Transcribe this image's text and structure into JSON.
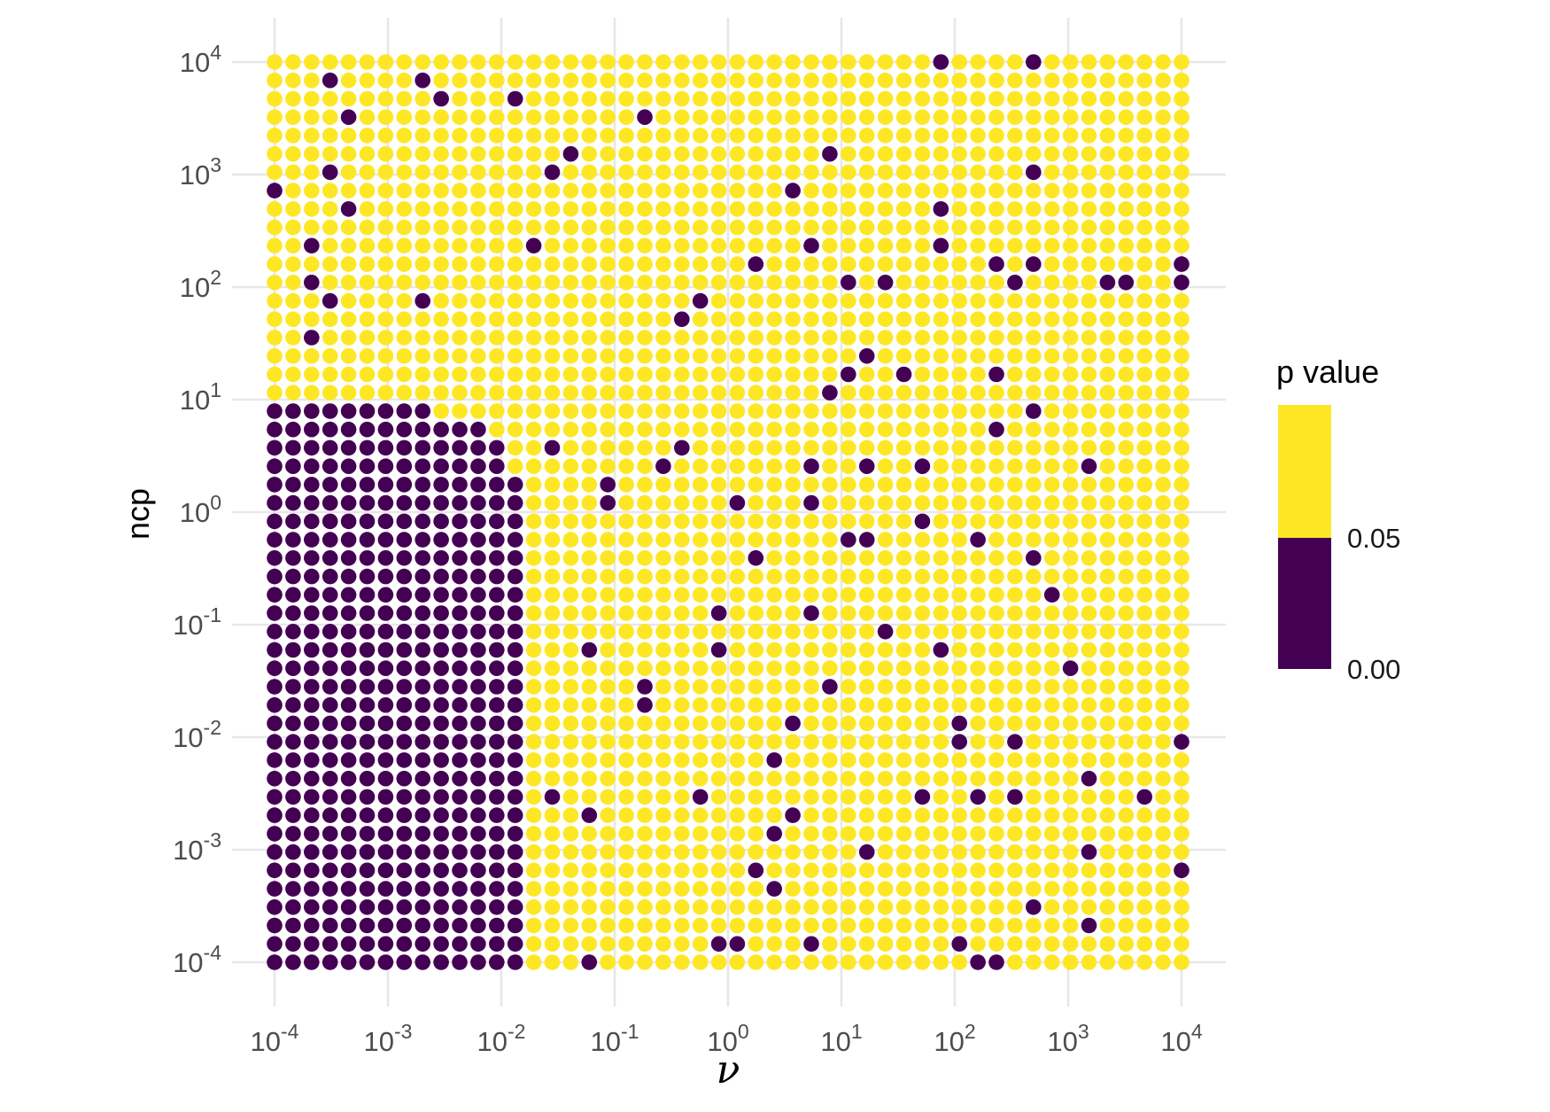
{
  "figure": {
    "background": "#FFFFFF",
    "panel": {
      "gridline_color": "#E7E7E7",
      "x_gridline_exponents": [
        -4,
        -3,
        -2,
        -1,
        0,
        1,
        2,
        3,
        4
      ],
      "y_gridline_exponents": [
        -4,
        -3,
        -2,
        -1,
        0,
        1,
        2,
        3,
        4
      ]
    },
    "x_axis": {
      "title": "ν",
      "tick_labels": [
        "10^-4",
        "10^-3",
        "10^-2",
        "10^-1",
        "10^0",
        "10^1",
        "10^2",
        "10^3",
        "10^4"
      ],
      "tick_base": "10",
      "tick_exponents": [
        "-4",
        "-3",
        "-2",
        "-1",
        "0",
        "1",
        "2",
        "3",
        "4"
      ],
      "tick_color": "#4D4D4D",
      "title_color": "#000000"
    },
    "y_axis": {
      "title": "ncp",
      "tick_labels": [
        "10^-4",
        "10^-3",
        "10^-2",
        "10^-1",
        "10^0",
        "10^1",
        "10^2",
        "10^3",
        "10^4"
      ],
      "tick_base": "10",
      "tick_exponents": [
        "-4",
        "-3",
        "-2",
        "-1",
        "0",
        "1",
        "2",
        "3",
        "4"
      ],
      "tick_color": "#4D4D4D",
      "title_color": "#000000"
    }
  },
  "legend": {
    "title": "p value",
    "labels": [
      "0.05",
      "0.00"
    ],
    "label_values": [
      0.05,
      0.0
    ],
    "segment_colors": [
      "#FDE725",
      "#440154"
    ],
    "text_color": "#1A1A1A"
  },
  "chart_data": {
    "type": "scatter",
    "subtype": "dot-grid-significance-map",
    "title": "",
    "xlabel": "ν",
    "ylabel": "ncp",
    "x_scale": "log10",
    "y_scale": "log10",
    "x_range": [
      0.0001,
      10000
    ],
    "y_range": [
      0.0001,
      10000
    ],
    "grid_points_per_axis": 50,
    "legend_position": "right",
    "grid": "major-only",
    "color_scale": {
      "name": "p value",
      "threshold": 0.05,
      "color_below_threshold": "#440154",
      "color_above_threshold": "#FDE725"
    },
    "significant_block": {
      "description": "contiguous p<0.05 region in lower-left: column index i (0=1e-4 .. 49=1e4) and row index j (0=1e-4 bottom .. 49=1e4 top)",
      "max_row": 30,
      "default_max_col": 13,
      "row_caps": {
        "30": 8,
        "29": 11,
        "28": 12,
        "27": 12
      }
    },
    "dark_outliers": [
      [
        36,
        49
      ],
      [
        41,
        49
      ],
      [
        3,
        48
      ],
      [
        8,
        48
      ],
      [
        9,
        47
      ],
      [
        13,
        47
      ],
      [
        4,
        46
      ],
      [
        20,
        46
      ],
      [
        16,
        44
      ],
      [
        30,
        44
      ],
      [
        3,
        43
      ],
      [
        15,
        43
      ],
      [
        41,
        43
      ],
      [
        0,
        42
      ],
      [
        28,
        42
      ],
      [
        4,
        41
      ],
      [
        36,
        41
      ],
      [
        2,
        39
      ],
      [
        14,
        39
      ],
      [
        29,
        39
      ],
      [
        36,
        39
      ],
      [
        26,
        38
      ],
      [
        39,
        38
      ],
      [
        41,
        38
      ],
      [
        49,
        38
      ],
      [
        2,
        37
      ],
      [
        31,
        37
      ],
      [
        33,
        37
      ],
      [
        40,
        37
      ],
      [
        45,
        37
      ],
      [
        46,
        37
      ],
      [
        49,
        37
      ],
      [
        3,
        36
      ],
      [
        8,
        36
      ],
      [
        23,
        36
      ],
      [
        22,
        35
      ],
      [
        2,
        34
      ],
      [
        32,
        33
      ],
      [
        31,
        32
      ],
      [
        34,
        32
      ],
      [
        39,
        32
      ],
      [
        30,
        31
      ],
      [
        41,
        30
      ],
      [
        39,
        29
      ],
      [
        15,
        28
      ],
      [
        22,
        28
      ],
      [
        21,
        27
      ],
      [
        29,
        27
      ],
      [
        32,
        27
      ],
      [
        35,
        27
      ],
      [
        44,
        27
      ],
      [
        18,
        26
      ],
      [
        18,
        25
      ],
      [
        25,
        25
      ],
      [
        29,
        25
      ],
      [
        35,
        24
      ],
      [
        31,
        23
      ],
      [
        32,
        23
      ],
      [
        38,
        23
      ],
      [
        26,
        22
      ],
      [
        41,
        22
      ],
      [
        42,
        20
      ],
      [
        24,
        19
      ],
      [
        29,
        19
      ],
      [
        33,
        18
      ],
      [
        17,
        17
      ],
      [
        24,
        17
      ],
      [
        36,
        17
      ],
      [
        43,
        16
      ],
      [
        20,
        15
      ],
      [
        30,
        15
      ],
      [
        20,
        14
      ],
      [
        28,
        13
      ],
      [
        37,
        13
      ],
      [
        37,
        12
      ],
      [
        40,
        12
      ],
      [
        49,
        12
      ],
      [
        27,
        11
      ],
      [
        44,
        10
      ],
      [
        15,
        9
      ],
      [
        23,
        9
      ],
      [
        35,
        9
      ],
      [
        38,
        9
      ],
      [
        40,
        9
      ],
      [
        47,
        9
      ],
      [
        17,
        8
      ],
      [
        28,
        8
      ],
      [
        27,
        7
      ],
      [
        32,
        6
      ],
      [
        44,
        6
      ],
      [
        26,
        5
      ],
      [
        49,
        5
      ],
      [
        27,
        4
      ],
      [
        41,
        3
      ],
      [
        44,
        2
      ],
      [
        24,
        1
      ],
      [
        25,
        1
      ],
      [
        29,
        1
      ],
      [
        37,
        1
      ],
      [
        17,
        0
      ],
      [
        38,
        0
      ],
      [
        39,
        0
      ]
    ]
  }
}
